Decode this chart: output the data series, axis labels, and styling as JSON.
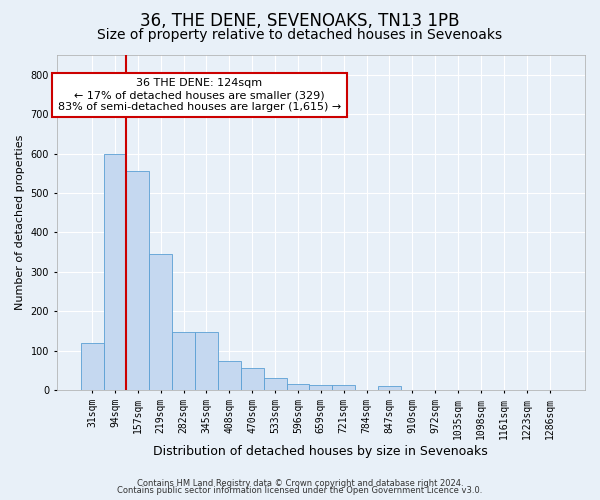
{
  "title": "36, THE DENE, SEVENOAKS, TN13 1PB",
  "subtitle": "Size of property relative to detached houses in Sevenoaks",
  "xlabel": "Distribution of detached houses by size in Sevenoaks",
  "ylabel": "Number of detached properties",
  "footnote1": "Contains HM Land Registry data © Crown copyright and database right 2024.",
  "footnote2": "Contains public sector information licensed under the Open Government Licence v3.0.",
  "categories": [
    "31sqm",
    "94sqm",
    "157sqm",
    "219sqm",
    "282sqm",
    "345sqm",
    "408sqm",
    "470sqm",
    "533sqm",
    "596sqm",
    "659sqm",
    "721sqm",
    "784sqm",
    "847sqm",
    "910sqm",
    "972sqm",
    "1035sqm",
    "1098sqm",
    "1161sqm",
    "1223sqm",
    "1286sqm"
  ],
  "values": [
    120,
    600,
    555,
    345,
    148,
    148,
    75,
    55,
    30,
    15,
    12,
    12,
    0,
    10,
    0,
    0,
    0,
    0,
    0,
    0,
    0
  ],
  "bar_color": "#c5d8f0",
  "bar_edge_color": "#5a9fd4",
  "vline_color": "#cc0000",
  "annotation_line1": "36 THE DENE: 124sqm",
  "annotation_line2": "← 17% of detached houses are smaller (329)",
  "annotation_line3": "83% of semi-detached houses are larger (1,615) →",
  "annotation_box_color": "white",
  "annotation_box_edge": "#cc0000",
  "ylim": [
    0,
    850
  ],
  "yticks": [
    0,
    100,
    200,
    300,
    400,
    500,
    600,
    700,
    800
  ],
  "background_color": "#e8f0f8",
  "grid_color": "white",
  "title_fontsize": 12,
  "subtitle_fontsize": 10,
  "xlabel_fontsize": 9,
  "ylabel_fontsize": 8,
  "tick_fontsize": 7,
  "annotation_fontsize": 8,
  "footnote_fontsize": 6
}
